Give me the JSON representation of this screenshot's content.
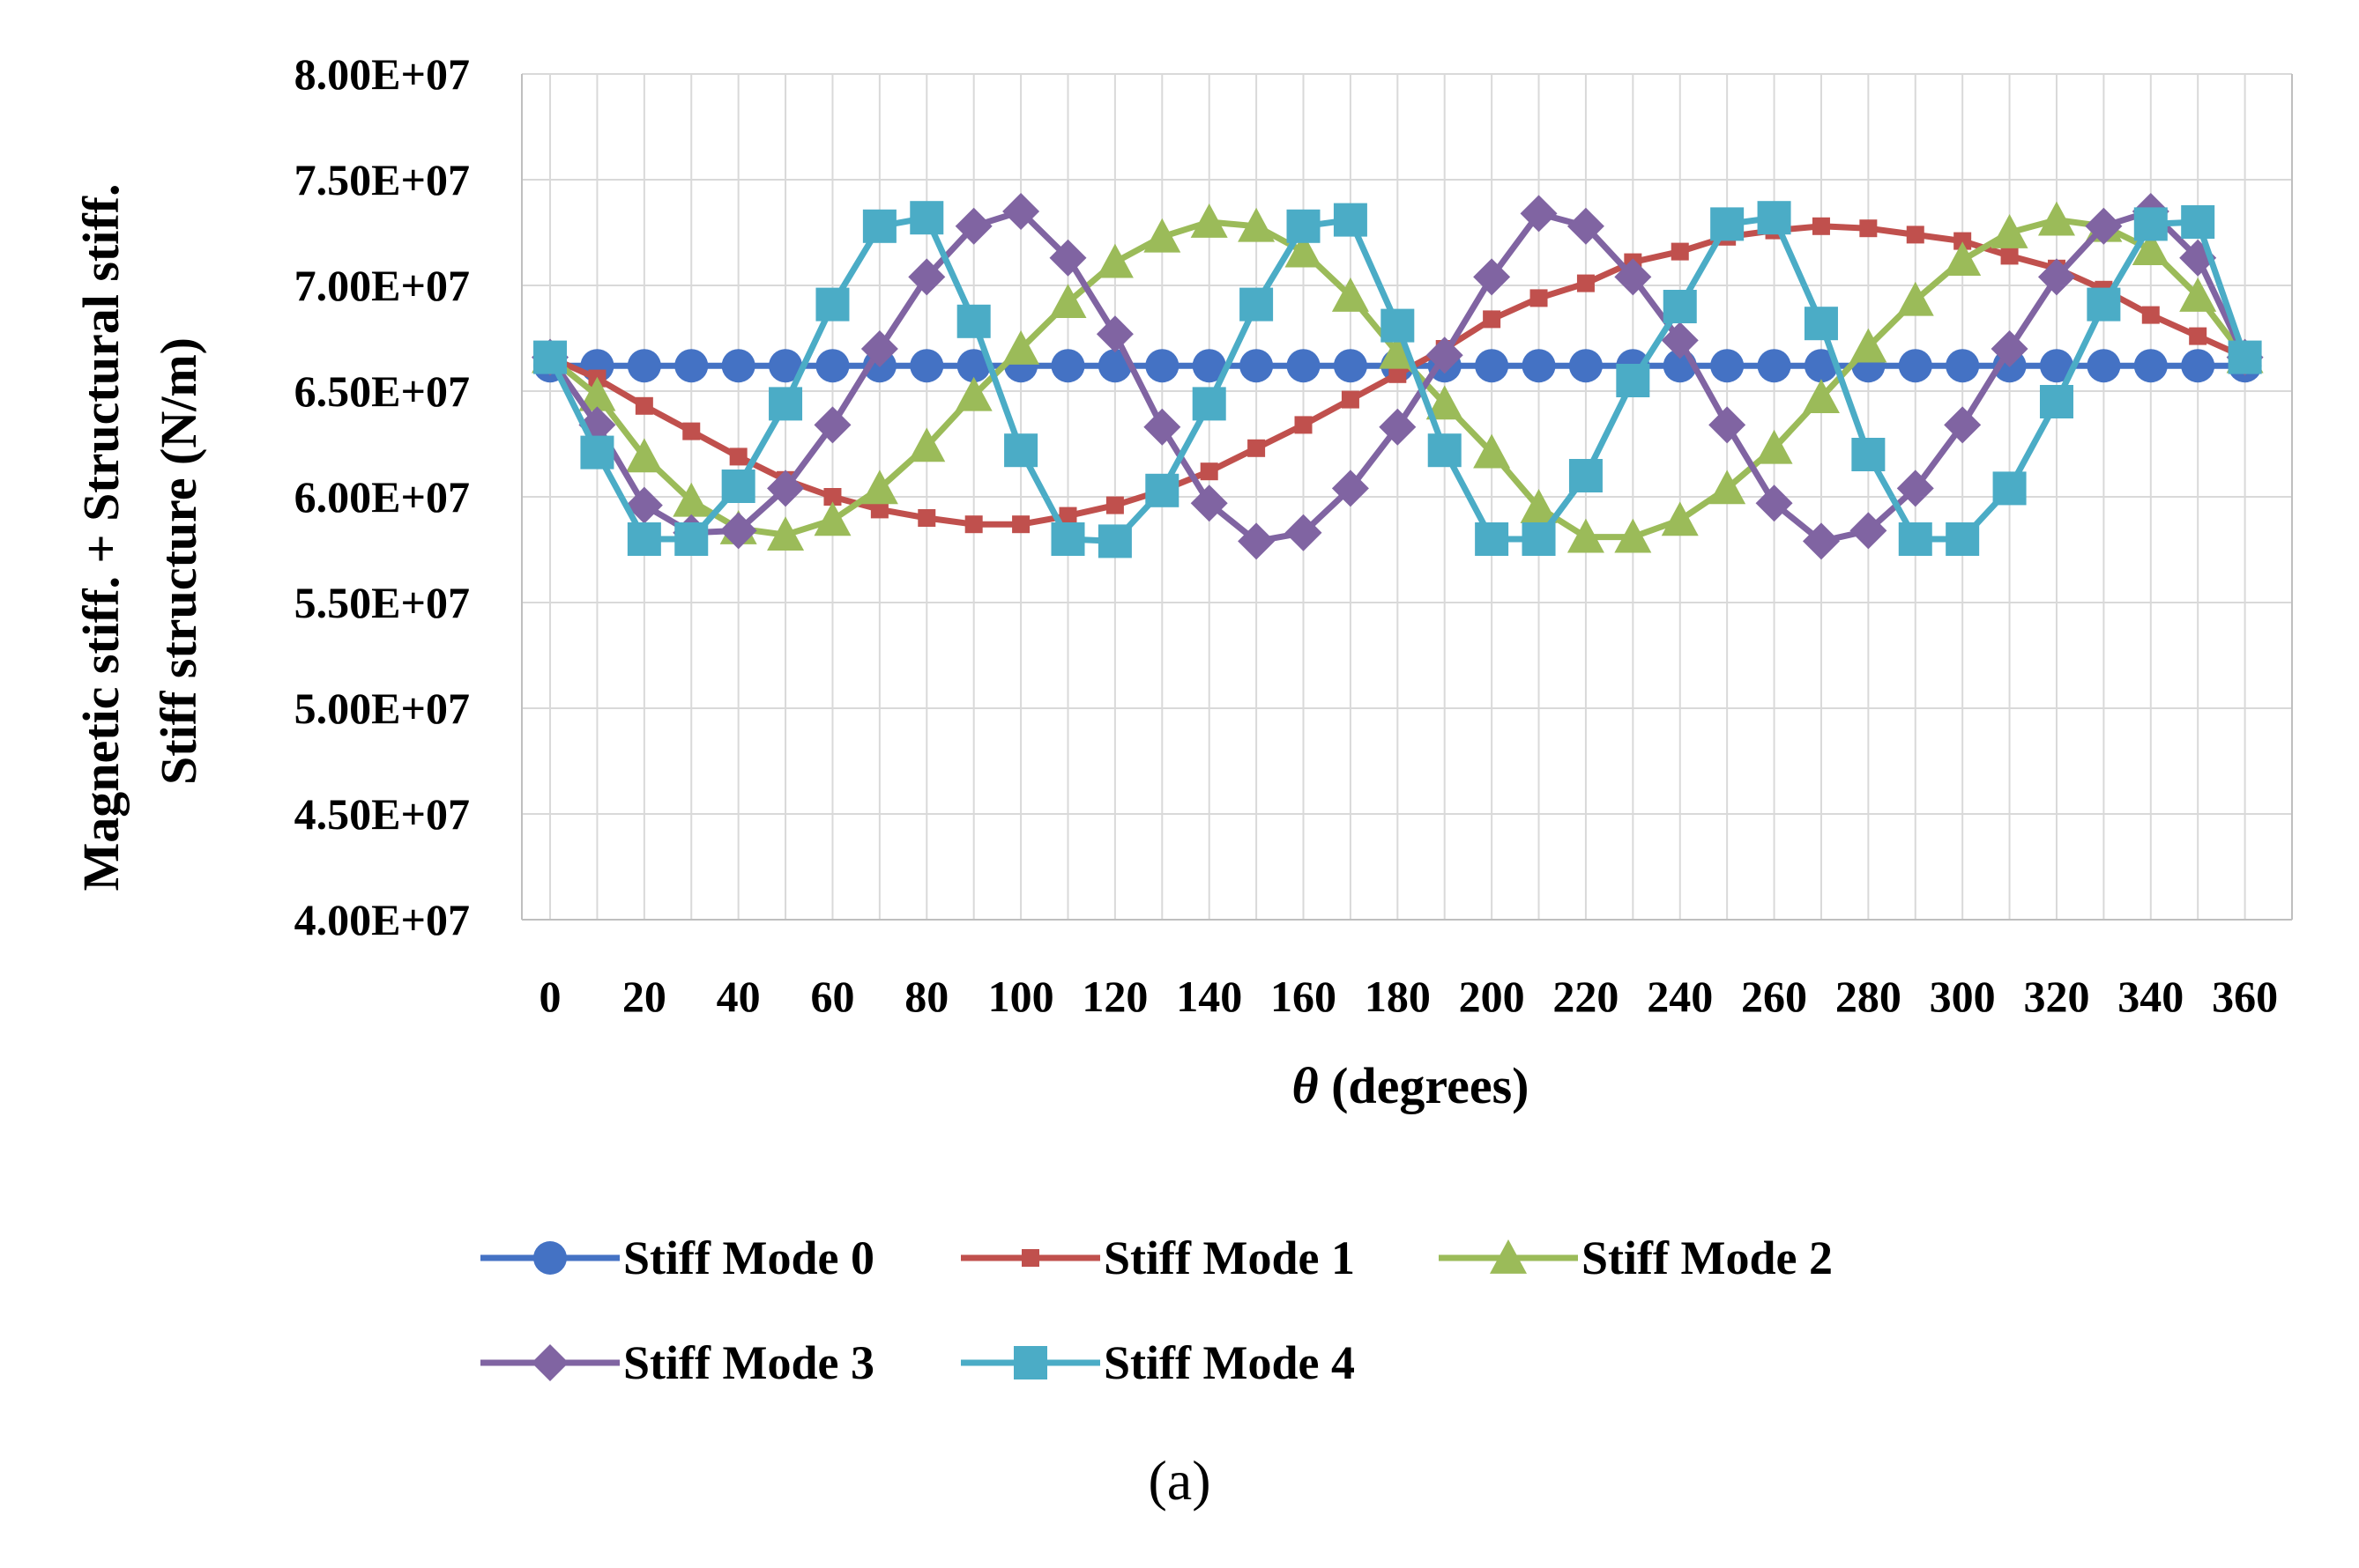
{
  "chart_data": {
    "type": "line",
    "ylabel_lines": [
      "Magnetic stiff. + Structural stiff.",
      "Stiff structure  (N/m)"
    ],
    "xlabel_symbol": "θ",
    "xlabel_text": " (degrees)",
    "xlim": [
      0,
      360
    ],
    "ylim": [
      40000000,
      80000000
    ],
    "grid": true,
    "legend_position": "bottom",
    "caption": "(a)",
    "x_ticks": [
      "0",
      "20",
      "40",
      "60",
      "80",
      "100",
      "120",
      "140",
      "160",
      "180",
      "200",
      "220",
      "240",
      "260",
      "280",
      "300",
      "320",
      "340",
      "360"
    ],
    "y_ticks": [
      {
        "value": 40000000,
        "label": "4.00E+07"
      },
      {
        "value": 45000000,
        "label": "4.50E+07"
      },
      {
        "value": 50000000,
        "label": "5.00E+07"
      },
      {
        "value": 55000000,
        "label": "5.50E+07"
      },
      {
        "value": 60000000,
        "label": "6.00E+07"
      },
      {
        "value": 65000000,
        "label": "6.50E+07"
      },
      {
        "value": 70000000,
        "label": "7.00E+07"
      },
      {
        "value": 75000000,
        "label": "7.50E+07"
      },
      {
        "value": 80000000,
        "label": "8.00E+07"
      }
    ],
    "x": [
      0,
      10,
      20,
      30,
      40,
      50,
      60,
      70,
      80,
      90,
      100,
      110,
      120,
      130,
      140,
      150,
      160,
      170,
      180,
      190,
      200,
      210,
      220,
      230,
      240,
      250,
      260,
      270,
      280,
      290,
      300,
      310,
      320,
      330,
      340,
      350,
      360
    ],
    "series": [
      {
        "name": "Stiff Mode 0",
        "color": "#4472C4",
        "marker": "circle",
        "values": [
          66200000,
          66200000,
          66200000,
          66200000,
          66200000,
          66200000,
          66200000,
          66200000,
          66200000,
          66200000,
          66200000,
          66200000,
          66200000,
          66200000,
          66200000,
          66200000,
          66200000,
          66200000,
          66200000,
          66200000,
          66200000,
          66200000,
          66200000,
          66200000,
          66200000,
          66200000,
          66200000,
          66200000,
          66200000,
          66200000,
          66200000,
          66200000,
          66200000,
          66200000,
          66200000,
          66200000,
          66200000
        ]
      },
      {
        "name": "Stiff Mode 1",
        "color": "#C0504D",
        "marker": "square-small",
        "values": [
          66600000,
          65600000,
          64300000,
          63100000,
          61900000,
          60800000,
          60000000,
          59400000,
          59000000,
          58700000,
          58700000,
          59100000,
          59600000,
          60300000,
          61200000,
          62300000,
          63400000,
          64600000,
          65800000,
          67000000,
          68400000,
          69400000,
          70100000,
          71100000,
          71600000,
          72300000,
          72600000,
          72800000,
          72700000,
          72400000,
          72100000,
          71400000,
          70800000,
          69800000,
          68600000,
          67600000,
          66600000
        ]
      },
      {
        "name": "Stiff Mode 2",
        "color": "#9BBB59",
        "marker": "triangle",
        "values": [
          66600000,
          64800000,
          61900000,
          59800000,
          58500000,
          58200000,
          58900000,
          60400000,
          62400000,
          64800000,
          67000000,
          69200000,
          71100000,
          72300000,
          73000000,
          72800000,
          71600000,
          69500000,
          66800000,
          64400000,
          62100000,
          59500000,
          58100000,
          58100000,
          58900000,
          60400000,
          62300000,
          64700000,
          67100000,
          69300000,
          71200000,
          72500000,
          73100000,
          72800000,
          71700000,
          69500000,
          66600000
        ]
      },
      {
        "name": "Stiff Mode 3",
        "color": "#8064A2",
        "marker": "diamond",
        "values": [
          66600000,
          63400000,
          59600000,
          58300000,
          58400000,
          60400000,
          63400000,
          67000000,
          70400000,
          72800000,
          73500000,
          71300000,
          67700000,
          63300000,
          59700000,
          57900000,
          58300000,
          60400000,
          63300000,
          66700000,
          70400000,
          73400000,
          72800000,
          70400000,
          67400000,
          63400000,
          59700000,
          57900000,
          58400000,
          60400000,
          63400000,
          67000000,
          70400000,
          72800000,
          73500000,
          71300000,
          66600000
        ]
      },
      {
        "name": "Stiff Mode 4",
        "color": "#4BACC6",
        "marker": "square",
        "values": [
          66600000,
          62100000,
          58000000,
          58000000,
          60500000,
          64400000,
          69100000,
          72800000,
          73200000,
          68300000,
          62200000,
          58000000,
          57900000,
          60300000,
          64400000,
          69100000,
          72800000,
          73100000,
          68100000,
          62200000,
          58000000,
          58000000,
          61000000,
          65500000,
          69000000,
          72900000,
          73200000,
          68200000,
          62000000,
          58000000,
          58000000,
          60400000,
          64500000,
          69100000,
          72900000,
          73000000,
          66600000
        ]
      }
    ]
  }
}
